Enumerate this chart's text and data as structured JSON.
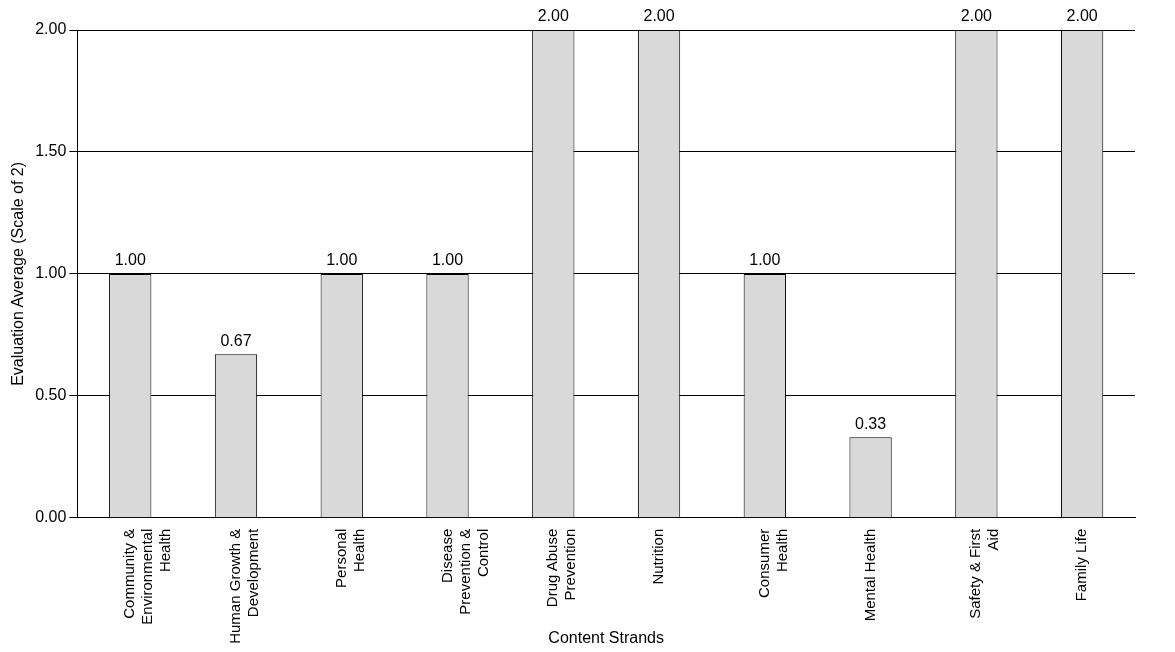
{
  "chart_data": {
    "type": "bar",
    "xlabel": "Content Strands",
    "ylabel": "Evaluation Average (Scale of 2)",
    "categories": [
      "Community & Environmental Health",
      "Human Growth & Development",
      "Personal Health",
      "Disease Prevention & Control",
      "Drug Abuse Prevention",
      "Nutrition",
      "Consumer Health",
      "Mental Health",
      "Safety & First Aid",
      "Family Life"
    ],
    "values": [
      1.0,
      0.67,
      1.0,
      1.0,
      2.0,
      2.0,
      1.0,
      0.33,
      2.0,
      2.0
    ],
    "color": "#d9d9d9",
    "ylim": [
      0,
      2
    ],
    "yticks": [
      {
        "value": 0,
        "label": "0.00"
      },
      {
        "value": 0.5,
        "label": "0.50"
      },
      {
        "value": 1,
        "label": "1.00"
      },
      {
        "value": 1.5,
        "label": "1.50"
      },
      {
        "value": 2,
        "label": "2.00"
      }
    ],
    "value_labels": [
      "1.00",
      "0.67",
      "1.00",
      "1.00",
      "2.00",
      "2.00",
      "1.00",
      "0.33",
      "2.00",
      "2.00"
    ],
    "grid": "y",
    "legend": false
  }
}
